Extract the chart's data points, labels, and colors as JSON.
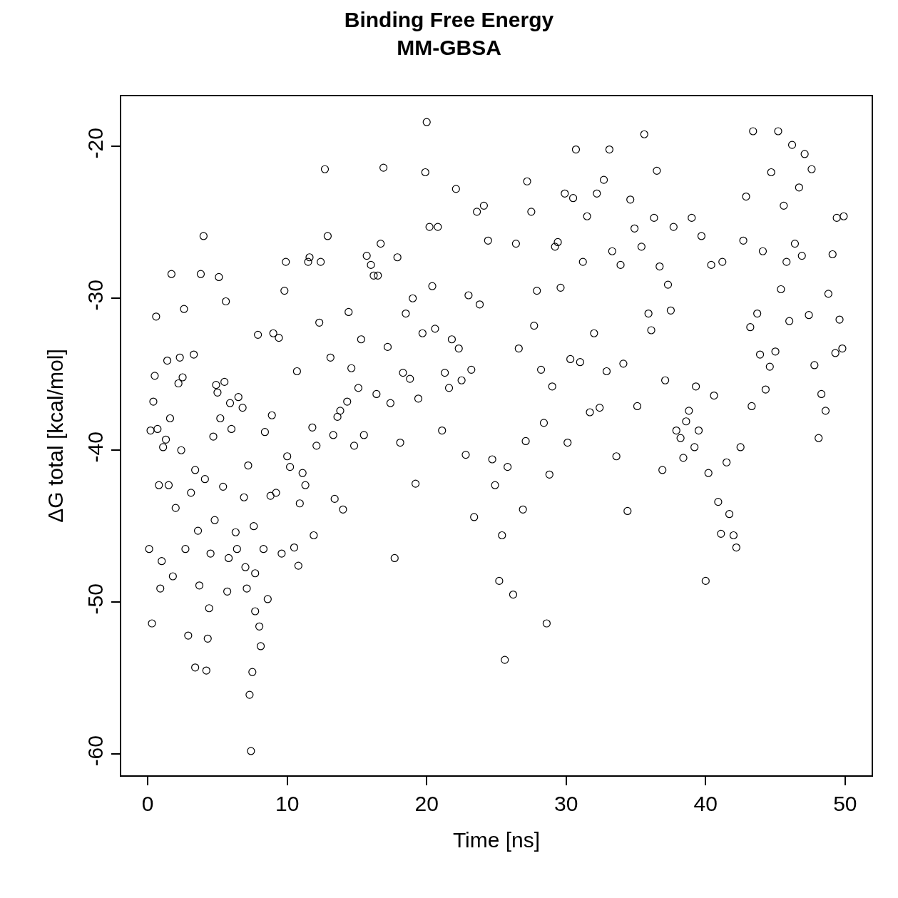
{
  "chart_data": {
    "type": "scatter",
    "title": "Binding Free Energy",
    "subtitle": "MM-GBSA",
    "xlabel": "Time [ns]",
    "ylabel": "ΔG total [kcal/mol]",
    "xlim": [
      -1.9,
      51.9
    ],
    "ylim": [
      -61.4,
      -16.7
    ],
    "xticks": [
      0,
      10,
      20,
      30,
      40,
      50
    ],
    "yticks": [
      -60,
      -50,
      -40,
      -30,
      -20
    ],
    "marker": "circle",
    "series": [
      {
        "color": "#000000",
        "x": [
          0.1,
          0.3,
          0.2,
          0.5,
          0.6,
          0.4,
          0.7,
          0.8,
          0.9,
          1.0,
          1.1,
          1.3,
          1.4,
          1.5,
          1.6,
          1.7,
          1.8,
          2.0,
          2.2,
          2.3,
          2.4,
          2.5,
          2.6,
          2.7,
          2.9,
          3.1,
          3.3,
          3.4,
          3.4,
          3.6,
          3.7,
          3.8,
          4.0,
          4.1,
          4.2,
          4.3,
          4.4,
          4.5,
          4.7,
          4.8,
          4.9,
          5.0,
          5.1,
          5.2,
          5.4,
          5.5,
          5.6,
          5.7,
          5.8,
          5.9,
          6.0,
          6.3,
          6.4,
          6.5,
          6.8,
          6.9,
          7.0,
          7.1,
          7.2,
          7.3,
          7.4,
          7.5,
          7.6,
          7.7,
          7.7,
          7.9,
          8.0,
          8.1,
          8.3,
          8.4,
          8.6,
          8.8,
          8.9,
          9.0,
          9.2,
          9.4,
          9.6,
          9.8,
          9.9,
          10.0,
          10.2,
          10.5,
          10.7,
          10.8,
          10.9,
          11.1,
          11.3,
          11.5,
          11.6,
          11.8,
          11.9,
          12.1,
          12.3,
          12.4,
          12.7,
          12.9,
          13.1,
          13.3,
          13.4,
          13.6,
          13.8,
          14.0,
          14.3,
          14.4,
          14.6,
          14.8,
          15.1,
          15.3,
          15.5,
          15.7,
          16.0,
          16.2,
          16.4,
          16.5,
          16.7,
          16.9,
          17.2,
          17.4,
          17.7,
          17.9,
          18.1,
          18.3,
          18.5,
          18.8,
          19.0,
          19.2,
          19.4,
          19.7,
          19.9,
          20.0,
          20.2,
          20.4,
          20.6,
          20.8,
          21.1,
          21.3,
          21.6,
          21.8,
          22.1,
          22.3,
          22.5,
          22.8,
          23.0,
          23.2,
          23.4,
          23.6,
          23.8,
          24.1,
          24.4,
          24.7,
          24.9,
          25.2,
          25.4,
          25.6,
          25.8,
          26.2,
          26.4,
          26.6,
          26.9,
          27.1,
          27.2,
          27.5,
          27.7,
          27.9,
          28.2,
          28.4,
          28.6,
          28.8,
          29.0,
          29.2,
          29.4,
          29.6,
          29.9,
          30.1,
          30.3,
          30.5,
          30.7,
          31.0,
          31.2,
          31.5,
          31.7,
          32.0,
          32.2,
          32.4,
          32.7,
          32.9,
          33.1,
          33.3,
          33.6,
          33.9,
          34.1,
          34.4,
          34.6,
          34.9,
          35.1,
          35.4,
          35.6,
          35.9,
          36.1,
          36.3,
          36.5,
          36.7,
          36.9,
          37.1,
          37.3,
          37.5,
          37.7,
          37.9,
          38.2,
          38.4,
          38.6,
          38.8,
          39.0,
          39.2,
          39.3,
          39.5,
          39.7,
          40.0,
          40.2,
          40.4,
          40.6,
          40.9,
          41.1,
          41.2,
          41.5,
          41.7,
          42.0,
          42.2,
          42.5,
          42.7,
          42.9,
          43.2,
          43.3,
          43.4,
          43.7,
          43.9,
          44.1,
          44.3,
          44.6,
          44.7,
          45.0,
          45.2,
          45.4,
          45.6,
          45.8,
          46.0,
          46.2,
          46.4,
          46.7,
          46.9,
          47.1,
          47.4,
          47.6,
          47.8,
          48.1,
          48.3,
          48.6,
          48.8,
          49.1,
          49.3,
          49.4,
          49.6,
          49.9,
          49.8
        ],
        "values": [
          -46.5,
          -51.4,
          -38.7,
          -35.1,
          -31.2,
          -36.8,
          -38.6,
          -42.3,
          -49.1,
          -47.3,
          -39.8,
          -39.3,
          -34.1,
          -42.3,
          -37.9,
          -28.4,
          -48.3,
          -43.8,
          -35.6,
          -33.9,
          -40.0,
          -35.2,
          -30.7,
          -46.5,
          -52.2,
          -42.8,
          -33.7,
          -41.3,
          -54.3,
          -45.3,
          -48.9,
          -28.4,
          -25.9,
          -41.9,
          -54.5,
          -52.4,
          -50.4,
          -46.8,
          -39.1,
          -44.6,
          -35.7,
          -36.2,
          -28.6,
          -37.9,
          -42.4,
          -35.5,
          -30.2,
          -49.3,
          -47.1,
          -36.9,
          -38.6,
          -45.4,
          -46.5,
          -36.5,
          -37.2,
          -43.1,
          -47.7,
          -49.1,
          -41.0,
          -56.1,
          -59.8,
          -54.6,
          -45.0,
          -48.1,
          -50.6,
          -32.4,
          -51.6,
          -52.9,
          -46.5,
          -38.8,
          -49.8,
          -43.0,
          -37.7,
          -32.3,
          -42.8,
          -32.6,
          -46.8,
          -29.5,
          -27.6,
          -40.4,
          -41.1,
          -46.4,
          -34.8,
          -47.6,
          -43.5,
          -41.5,
          -42.3,
          -27.6,
          -27.3,
          -38.5,
          -45.6,
          -39.7,
          -31.6,
          -27.6,
          -21.5,
          -25.9,
          -33.9,
          -39.0,
          -43.2,
          -37.8,
          -37.4,
          -43.9,
          -36.8,
          -30.9,
          -34.6,
          -39.7,
          -35.9,
          -32.7,
          -39.0,
          -27.2,
          -27.8,
          -28.5,
          -36.3,
          -28.5,
          -26.4,
          -21.4,
          -33.2,
          -36.9,
          -47.1,
          -27.3,
          -39.5,
          -34.9,
          -31.0,
          -35.3,
          -30.0,
          -42.2,
          -36.6,
          -32.3,
          -21.7,
          -18.4,
          -25.3,
          -29.2,
          -32.0,
          -25.3,
          -38.7,
          -34.9,
          -35.9,
          -32.7,
          -22.8,
          -33.3,
          -35.4,
          -40.3,
          -29.8,
          -34.7,
          -44.4,
          -24.3,
          -30.4,
          -23.9,
          -26.2,
          -40.6,
          -42.3,
          -48.6,
          -45.6,
          -53.8,
          -41.1,
          -49.5,
          -26.4,
          -33.3,
          -43.9,
          -39.4,
          -22.3,
          -24.3,
          -31.8,
          -29.5,
          -34.7,
          -38.2,
          -51.4,
          -41.6,
          -35.8,
          -26.6,
          -26.3,
          -29.3,
          -23.1,
          -39.5,
          -34.0,
          -23.4,
          -20.2,
          -34.2,
          -27.6,
          -24.6,
          -37.5,
          -32.3,
          -23.1,
          -37.2,
          -22.2,
          -34.8,
          -20.2,
          -26.9,
          -40.4,
          -27.8,
          -34.3,
          -44.0,
          -23.5,
          -25.4,
          -37.1,
          -26.6,
          -19.2,
          -31.0,
          -32.1,
          -24.7,
          -21.6,
          -27.9,
          -41.3,
          -35.4,
          -29.1,
          -30.8,
          -25.3,
          -38.7,
          -39.2,
          -40.5,
          -38.1,
          -37.4,
          -24.7,
          -39.8,
          -35.8,
          -38.7,
          -25.9,
          -48.6,
          -41.5,
          -27.8,
          -36.4,
          -43.4,
          -45.5,
          -27.6,
          -40.8,
          -44.2,
          -45.6,
          -46.4,
          -39.8,
          -26.2,
          -23.3,
          -31.9,
          -37.1,
          -19.0,
          -31.0,
          -33.7,
          -26.9,
          -36.0,
          -34.5,
          -21.7,
          -33.5,
          -19.0,
          -29.4,
          -23.9,
          -27.6,
          -31.5,
          -19.9,
          -26.4,
          -22.7,
          -27.2,
          -20.5,
          -31.1,
          -21.5,
          -34.4,
          -39.2,
          -36.3,
          -37.4,
          -29.7,
          -27.1,
          -33.6,
          -24.7,
          -31.4,
          -24.6,
          -33.3
        ]
      }
    ]
  }
}
